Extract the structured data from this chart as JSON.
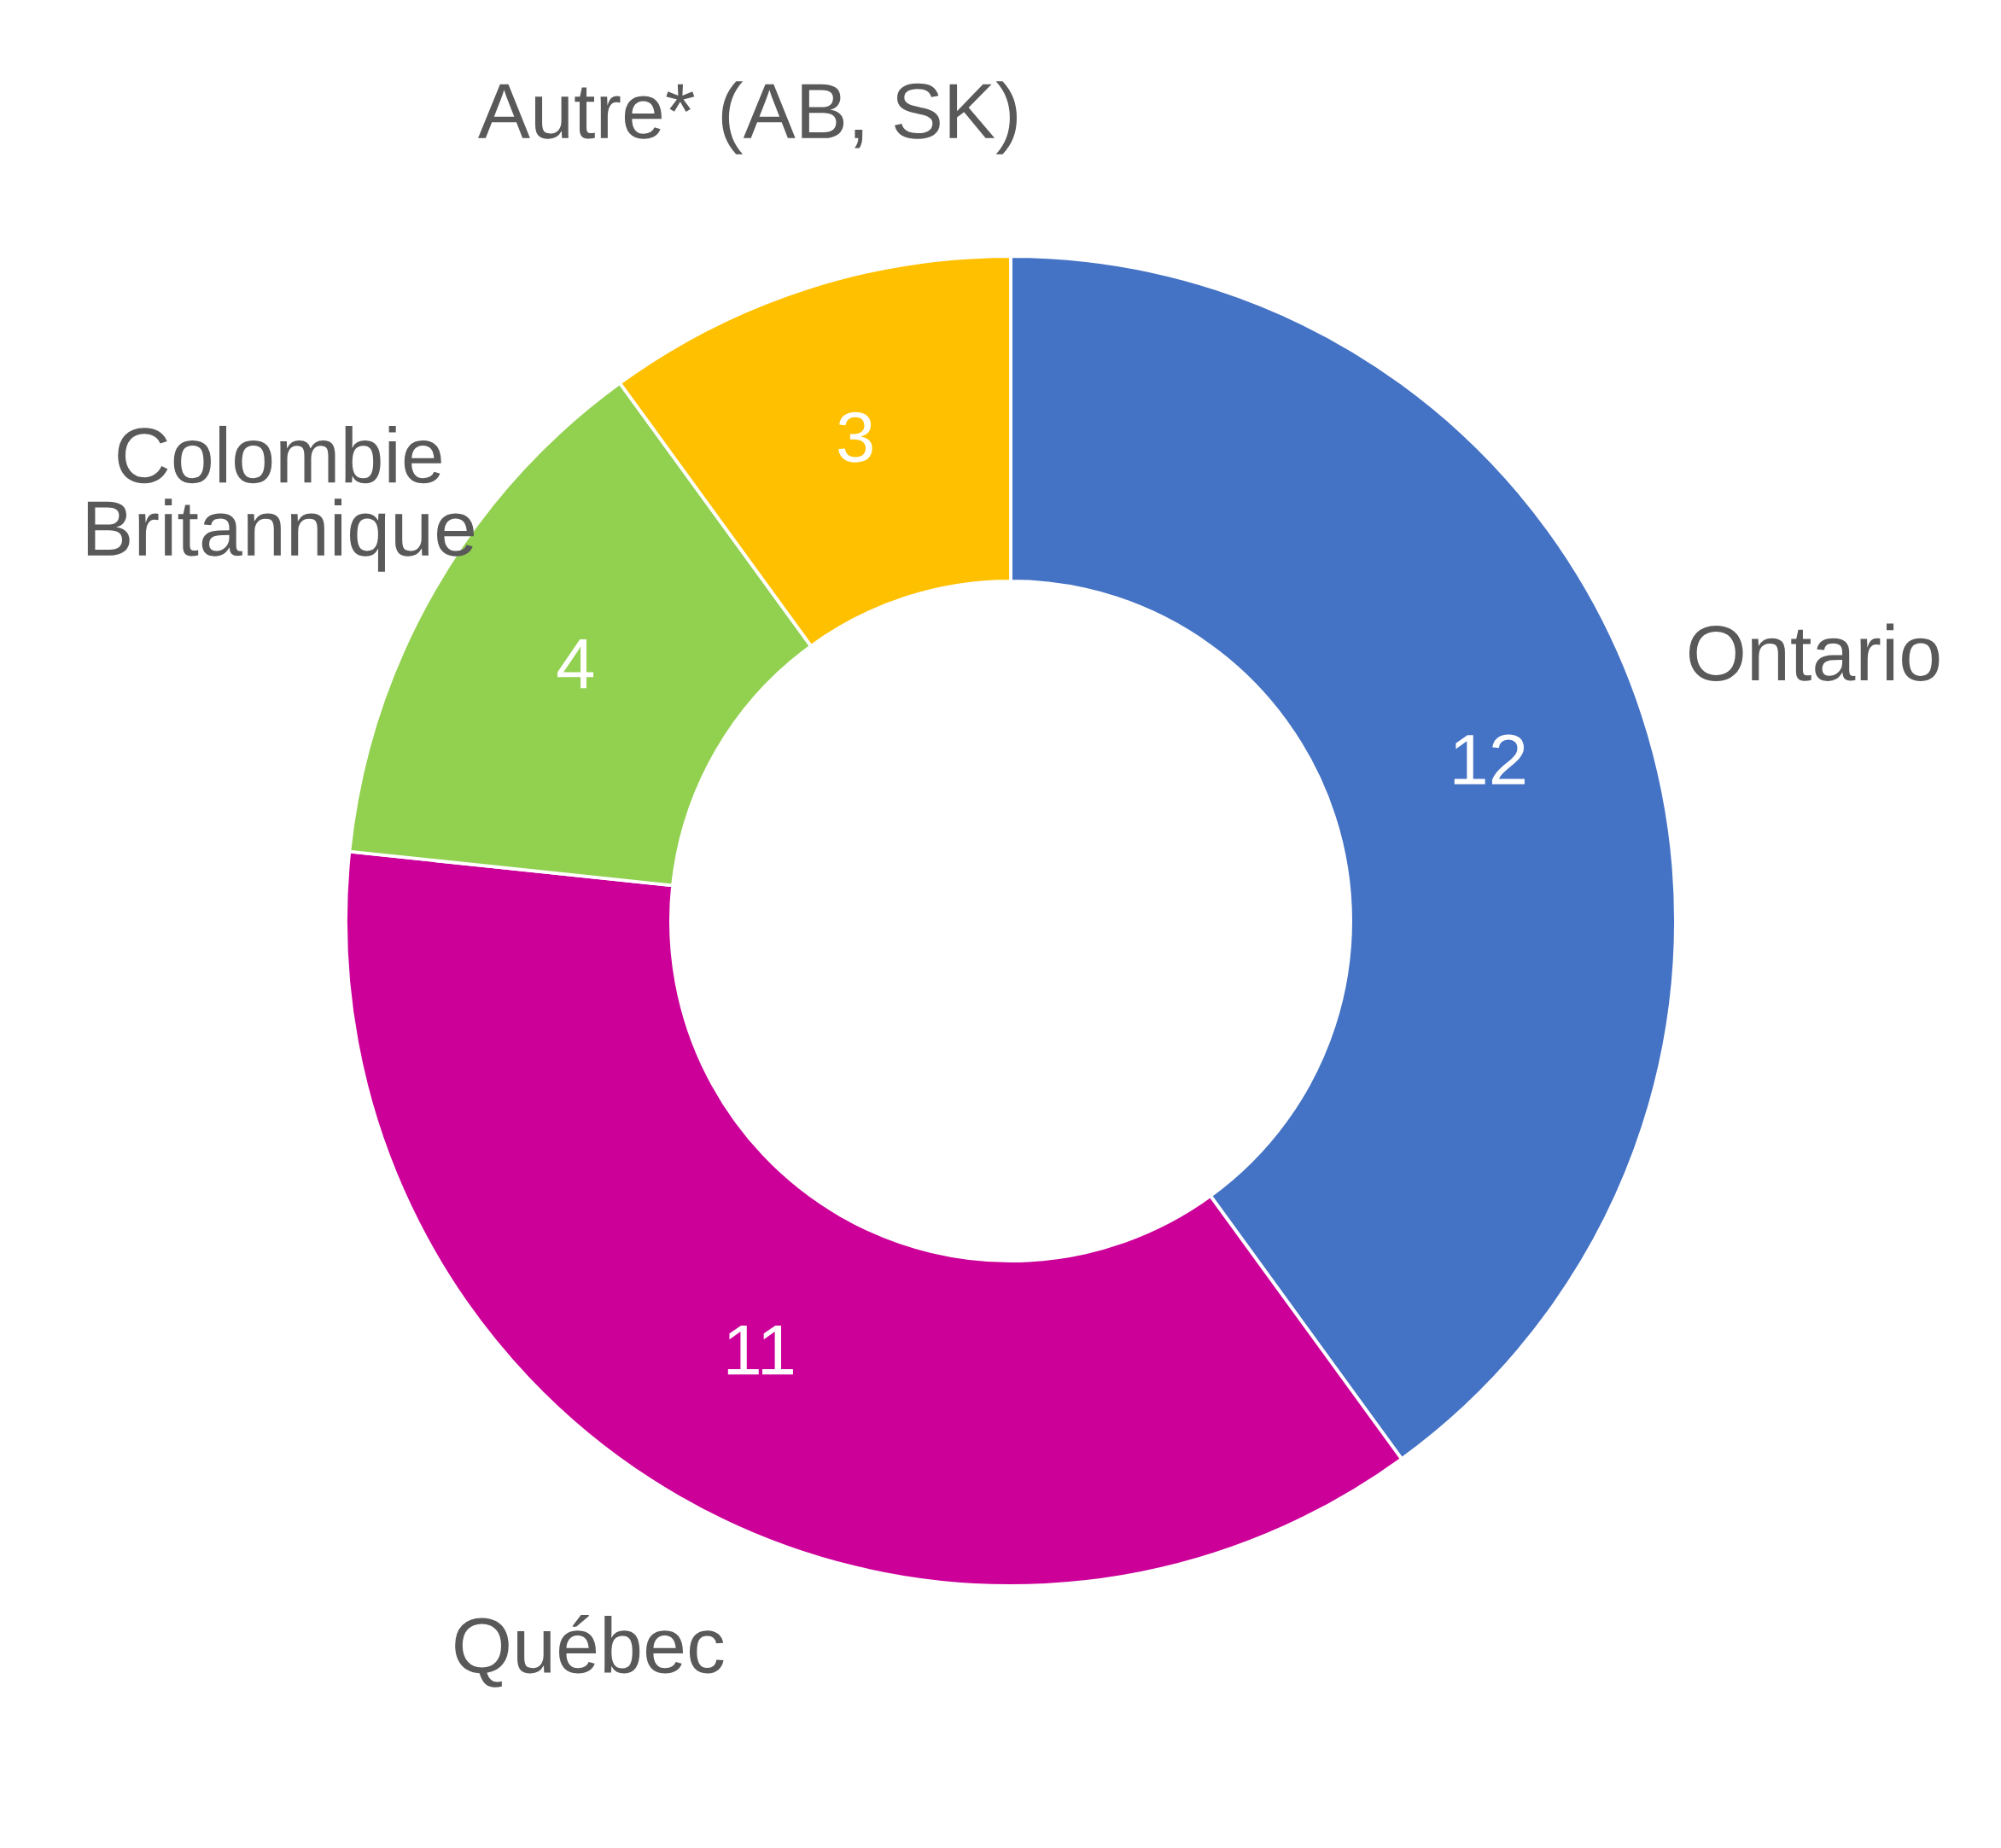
{
  "chart_data": {
    "type": "donut",
    "categories": [
      "Ontario",
      "Québec",
      "Colombie\nBritannique",
      "Autre* (AB, SK)"
    ],
    "values": [
      12,
      11,
      4,
      3
    ],
    "colors": [
      "#4472c4",
      "#cc0099",
      "#92d050",
      "#ffc000"
    ],
    "data_labels": true
  }
}
